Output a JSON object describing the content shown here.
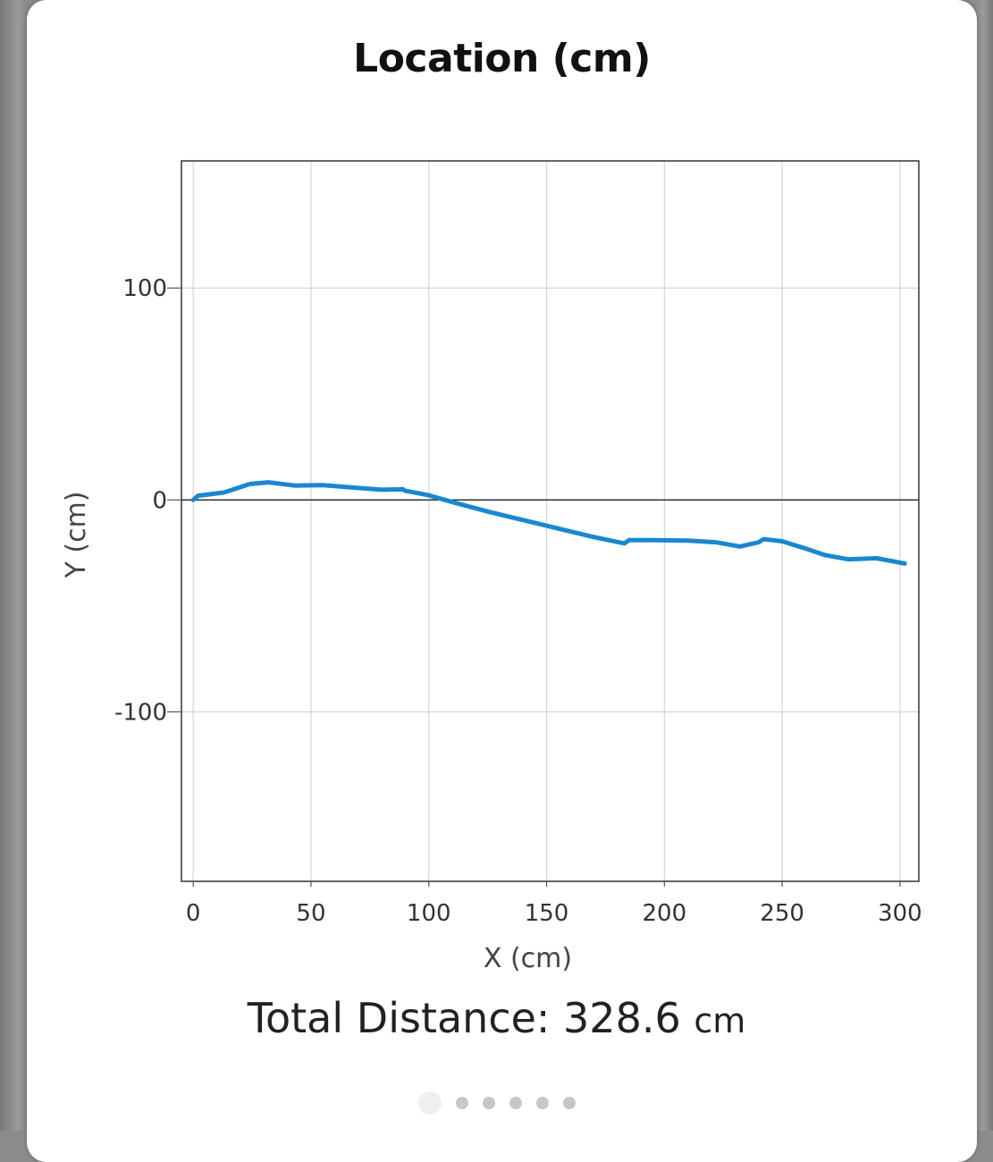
{
  "chart_data": {
    "type": "line",
    "title": "Location (cm)",
    "xlabel": "X (cm)",
    "ylabel": "Y (cm)",
    "xlim": [
      -5,
      308
    ],
    "ylim": [
      -180,
      160
    ],
    "x_ticks": [
      0,
      50,
      100,
      150,
      200,
      250,
      300
    ],
    "y_ticks": [
      100,
      0,
      -100
    ],
    "x_tick_labels": [
      "0",
      "50",
      "100",
      "150",
      "200",
      "250",
      "300"
    ],
    "y_tick_labels": [
      "100",
      "0",
      "-100"
    ],
    "grid": true,
    "zero_line": true,
    "series": [
      {
        "color": "#1a87d0",
        "x": [
          0,
          2,
          13,
          24,
          32,
          43,
          55,
          68,
          80,
          89,
          90,
          100,
          110,
          125,
          140,
          155,
          170,
          183,
          185,
          195,
          210,
          222,
          232,
          240,
          242,
          250,
          260,
          268,
          278,
          290,
          302
        ],
        "y": [
          0,
          2,
          3.5,
          7.5,
          8.3,
          6.8,
          7,
          5.8,
          4.8,
          5,
          4.3,
          2.2,
          -1,
          -5.5,
          -9.5,
          -13.5,
          -17.5,
          -20.5,
          -19,
          -19,
          -19.2,
          -20,
          -22,
          -20,
          -18.5,
          -19.5,
          -23,
          -26,
          -28,
          -27.5,
          -30
        ]
      }
    ]
  },
  "footer": {
    "total_label": "Total Distance: 328.6",
    "total_unit": "cm"
  },
  "pager": {
    "page_count": 6,
    "active_index": 0
  }
}
